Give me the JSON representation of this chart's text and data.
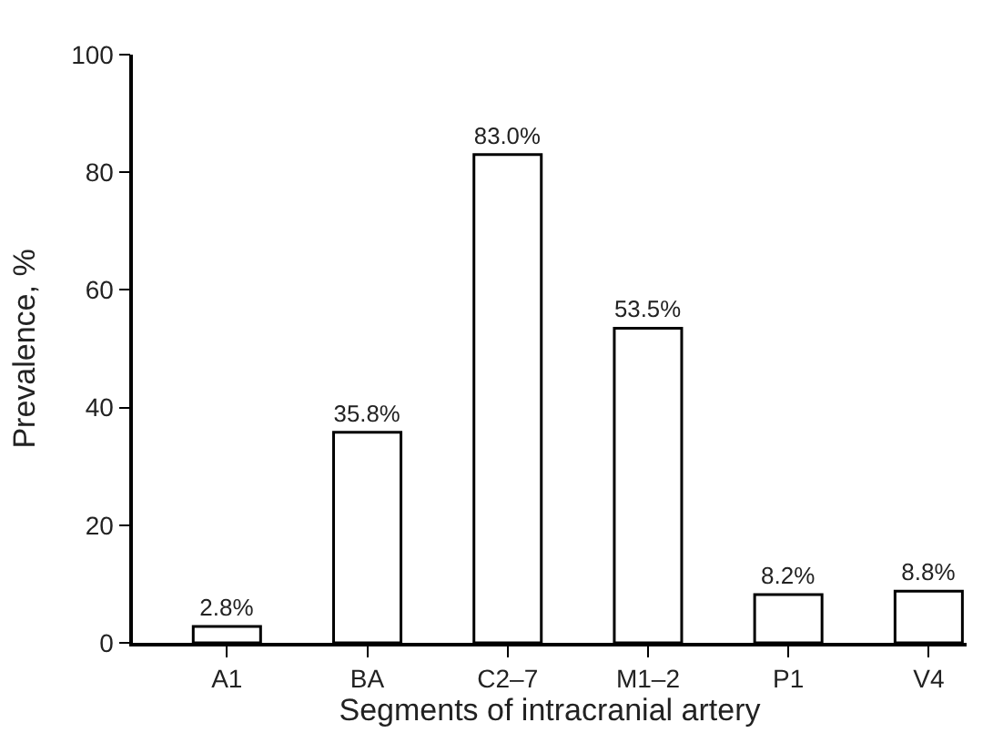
{
  "chart_data": {
    "type": "bar",
    "xlabel": "Segments of intracranial artery",
    "ylabel": "Prevalence, %",
    "categories": [
      "A1",
      "BA",
      "C2–7",
      "M1–2",
      "P1",
      "V4"
    ],
    "values": [
      2.8,
      35.8,
      83.0,
      53.5,
      8.2,
      8.8
    ],
    "value_labels": [
      "2.8%",
      "35.8%",
      "83.0%",
      "53.5%",
      "8.2%",
      "8.8%"
    ],
    "color": "#ffffff",
    "ylim": [
      0,
      100
    ],
    "yticks": [
      0,
      20,
      40,
      60,
      80,
      100
    ]
  }
}
